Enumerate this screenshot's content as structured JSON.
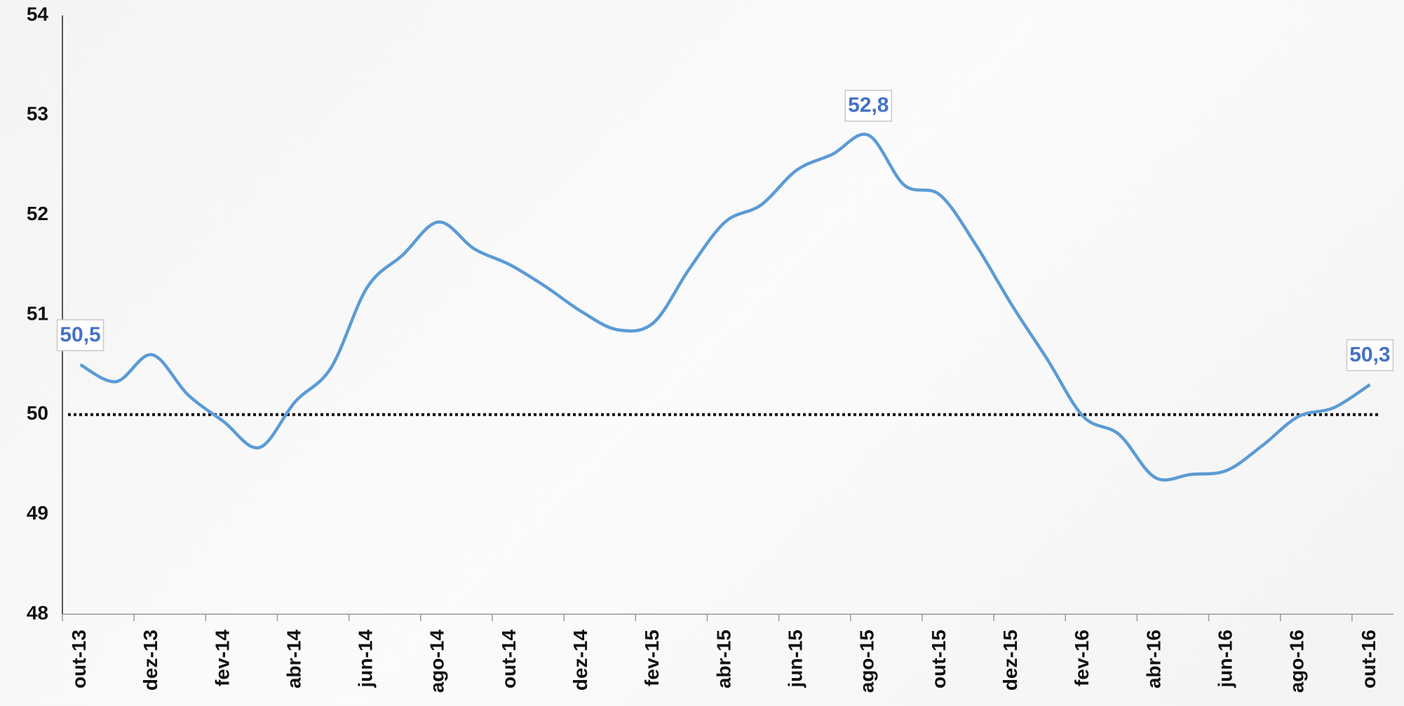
{
  "chart_data": {
    "type": "line",
    "categories": [
      "out-13",
      null,
      "dez-13",
      null,
      "fev-14",
      null,
      "abr-14",
      null,
      "jun-14",
      null,
      "ago-14",
      null,
      "out-14",
      null,
      "dez-14",
      null,
      "fev-15",
      null,
      "abr-15",
      null,
      "jun-15",
      null,
      "ago-15",
      null,
      "out-15",
      null,
      "dez-15",
      null,
      "fev-16",
      null,
      "abr-16",
      null,
      "jun-16",
      null,
      "ago-16",
      null,
      "out-16"
    ],
    "series": [
      {
        "color": "#5b9bd5",
        "values": [
          50.5,
          50.33,
          50.6,
          50.2,
          49.93,
          49.67,
          50.13,
          50.47,
          51.27,
          51.6,
          51.93,
          51.66,
          51.5,
          51.28,
          51.03,
          50.85,
          50.92,
          51.46,
          51.93,
          52.1,
          52.45,
          52.61,
          52.8,
          52.3,
          52.2,
          51.7,
          51.1,
          50.55,
          49.98,
          49.8,
          49.37,
          49.4,
          49.44,
          49.69,
          49.98,
          50.07,
          50.3
        ],
        "value_labels": [
          "50,5",
          null,
          null,
          null,
          null,
          null,
          null,
          null,
          null,
          null,
          null,
          null,
          null,
          null,
          null,
          null,
          null,
          null,
          null,
          null,
          null,
          null,
          "52,8",
          null,
          null,
          null,
          null,
          null,
          null,
          null,
          null,
          null,
          null,
          null,
          null,
          null,
          "50,3"
        ]
      }
    ],
    "hline": 50,
    "ylim": [
      48,
      54
    ],
    "yticks": [
      48,
      49,
      50,
      51,
      52,
      53,
      54
    ]
  }
}
